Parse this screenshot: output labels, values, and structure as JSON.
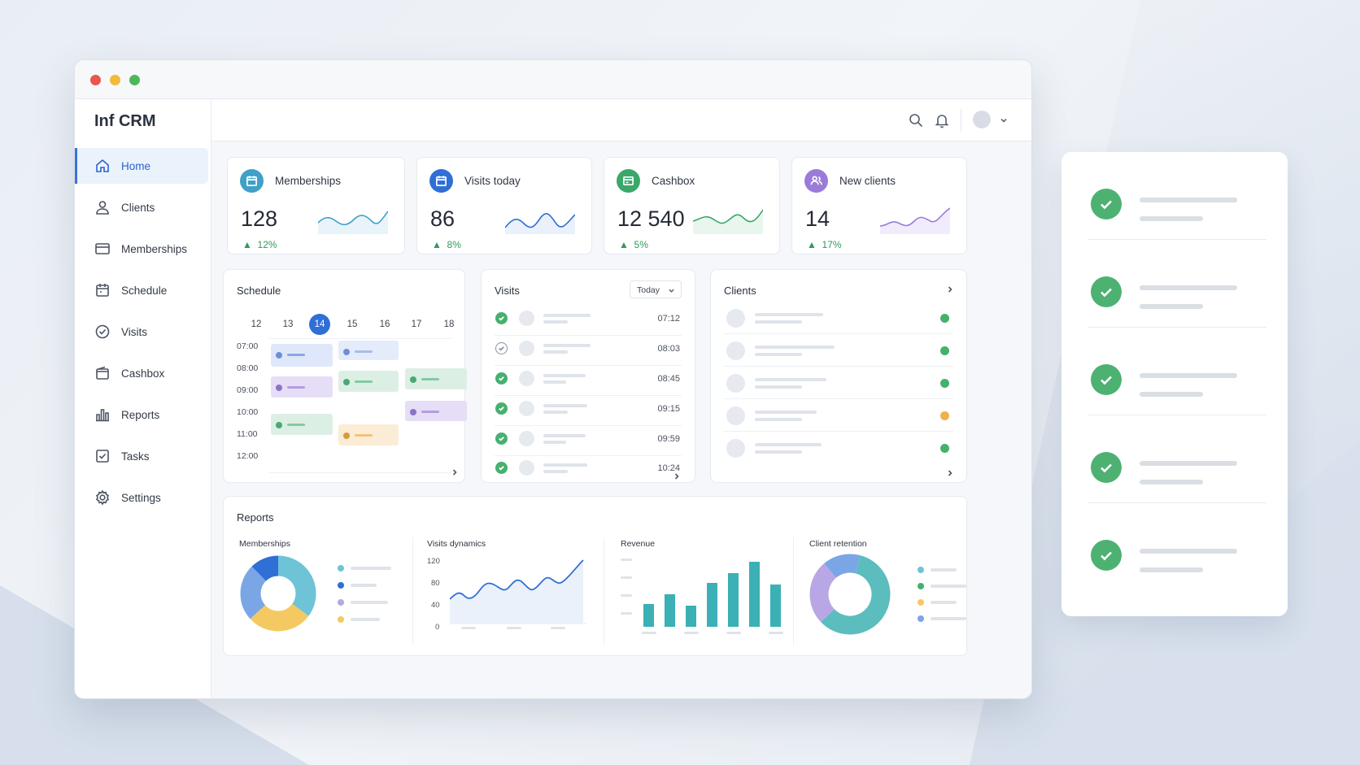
{
  "app": {
    "title": "Inf CRM"
  },
  "colors": {
    "accent": "#2f6fd6",
    "green": "#46b06f",
    "orange": "#f0b04a",
    "purple": "#9b7bd8",
    "teal": "#4db6b6"
  },
  "sidebar": {
    "items": [
      {
        "label": "Home",
        "icon": "home-icon"
      },
      {
        "label": "Clients",
        "icon": "user-icon"
      },
      {
        "label": "Memberships",
        "icon": "card-icon"
      },
      {
        "label": "Schedule",
        "icon": "calendar-icon"
      },
      {
        "label": "Visits",
        "icon": "check-circle-icon"
      },
      {
        "label": "Cashbox",
        "icon": "wallet-icon"
      },
      {
        "label": "Reports",
        "icon": "bar-chart-icon"
      },
      {
        "label": "Tasks",
        "icon": "checkbox-icon"
      },
      {
        "label": "Settings",
        "icon": "gear-icon"
      }
    ]
  },
  "stats": [
    {
      "label": "Memberships",
      "value": "128",
      "delta": "12%",
      "color": "#3fa0c8"
    },
    {
      "label": "Visits today",
      "value": "86",
      "delta": "8%",
      "color": "#2f6fd6"
    },
    {
      "label": "Cashbox",
      "value": "12 540",
      "delta": "5%",
      "color": "#3aa86a"
    },
    {
      "label": "New clients",
      "value": "14",
      "delta": "17%",
      "color": "#9b7bd8"
    }
  ],
  "schedule": {
    "title": "Schedule",
    "days": [
      "12",
      "13",
      "14",
      "15",
      "16",
      "17",
      "18"
    ],
    "selected_day": "14",
    "hours": [
      "07:00",
      "08:00",
      "09:00",
      "10:00",
      "11:00",
      "12:00"
    ]
  },
  "visits": {
    "title": "Visits",
    "filter": "Today",
    "times": [
      "07:12",
      "08:03",
      "08:45",
      "09:15",
      "09:59",
      "10:24"
    ]
  },
  "clients": {
    "title": "Clients"
  },
  "reports": {
    "title": "Reports",
    "memberships_title": "Memberships",
    "visits_title": "Visits dynamics",
    "visits_yticks": [
      "120",
      "80",
      "40",
      "0"
    ],
    "revenue_title": "Revenue",
    "retention_title": "Client retention"
  }
}
